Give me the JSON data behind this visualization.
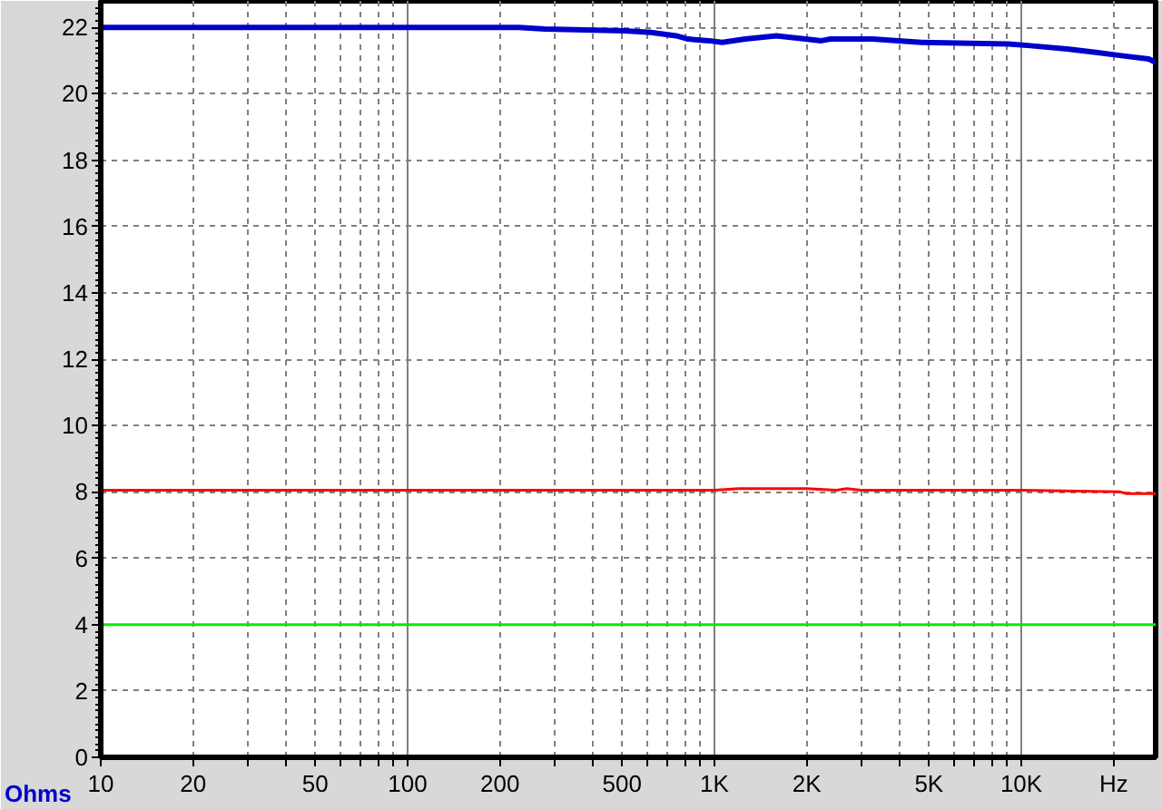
{
  "chart_data": {
    "type": "line",
    "ylabel": "Ohms",
    "log": "x",
    "grid": true,
    "line_style": "solid",
    "xlim": [
      10,
      27400
    ],
    "ylim": [
      0,
      22.8
    ],
    "xticks": [
      10,
      20,
      {
        "value": 30,
        "label": null
      },
      {
        "value": 40,
        "label": null
      },
      50,
      {
        "value": 60,
        "label": null
      },
      {
        "value": 70,
        "label": null
      },
      {
        "value": 80,
        "label": null
      },
      {
        "value": 90,
        "label": null
      },
      100,
      200,
      {
        "value": 300,
        "label": null
      },
      {
        "value": 400,
        "label": null
      },
      500,
      {
        "value": 600,
        "label": null
      },
      {
        "value": 700,
        "label": null
      },
      {
        "value": 800,
        "label": null
      },
      {
        "value": 900,
        "label": null
      },
      {
        "value": 1000,
        "label": "1K"
      },
      {
        "value": 2000,
        "label": "2K"
      },
      {
        "value": 3000,
        "label": null
      },
      {
        "value": 4000,
        "label": null
      },
      {
        "value": 5000,
        "label": "5K"
      },
      {
        "value": 6000,
        "label": null
      },
      {
        "value": 7000,
        "label": null
      },
      {
        "value": 8000,
        "label": null
      },
      {
        "value": 9000,
        "label": null
      },
      {
        "value": 10000,
        "label": "10K"
      },
      {
        "value": 20000,
        "label": "Hz"
      }
    ],
    "yticks": [
      0,
      2,
      4,
      6,
      8,
      10,
      12,
      14,
      16,
      18,
      20,
      22
    ],
    "series": [
      {
        "color": "#0000cc",
        "x": [
          10,
          230,
          280,
          510,
          620,
          750,
          820,
          960,
          1060,
          1260,
          1590,
          1980,
          2230,
          2390,
          3270,
          4730,
          9100,
          10700,
          14100,
          17500,
          21200,
          26000,
          27400
        ],
        "values": [
          22.0,
          22.0,
          21.95,
          21.9,
          21.85,
          21.75,
          21.65,
          21.6,
          21.55,
          21.65,
          21.75,
          21.65,
          21.6,
          21.65,
          21.65,
          21.55,
          21.5,
          21.45,
          21.35,
          21.25,
          21.15,
          21.05,
          20.95
        ]
      },
      {
        "color": "#ff0000",
        "x": [
          10,
          1000,
          1200,
          2000,
          2500,
          2700,
          3000,
          10000,
          21000,
          22000,
          27400
        ],
        "values": [
          8.05,
          8.05,
          8.1,
          8.1,
          8.05,
          8.1,
          8.05,
          8.05,
          8.0,
          7.95,
          7.95
        ]
      },
      {
        "color": "#00ee00",
        "x": [
          10,
          27400
        ],
        "values": [
          4.0,
          4.0
        ]
      }
    ]
  }
}
